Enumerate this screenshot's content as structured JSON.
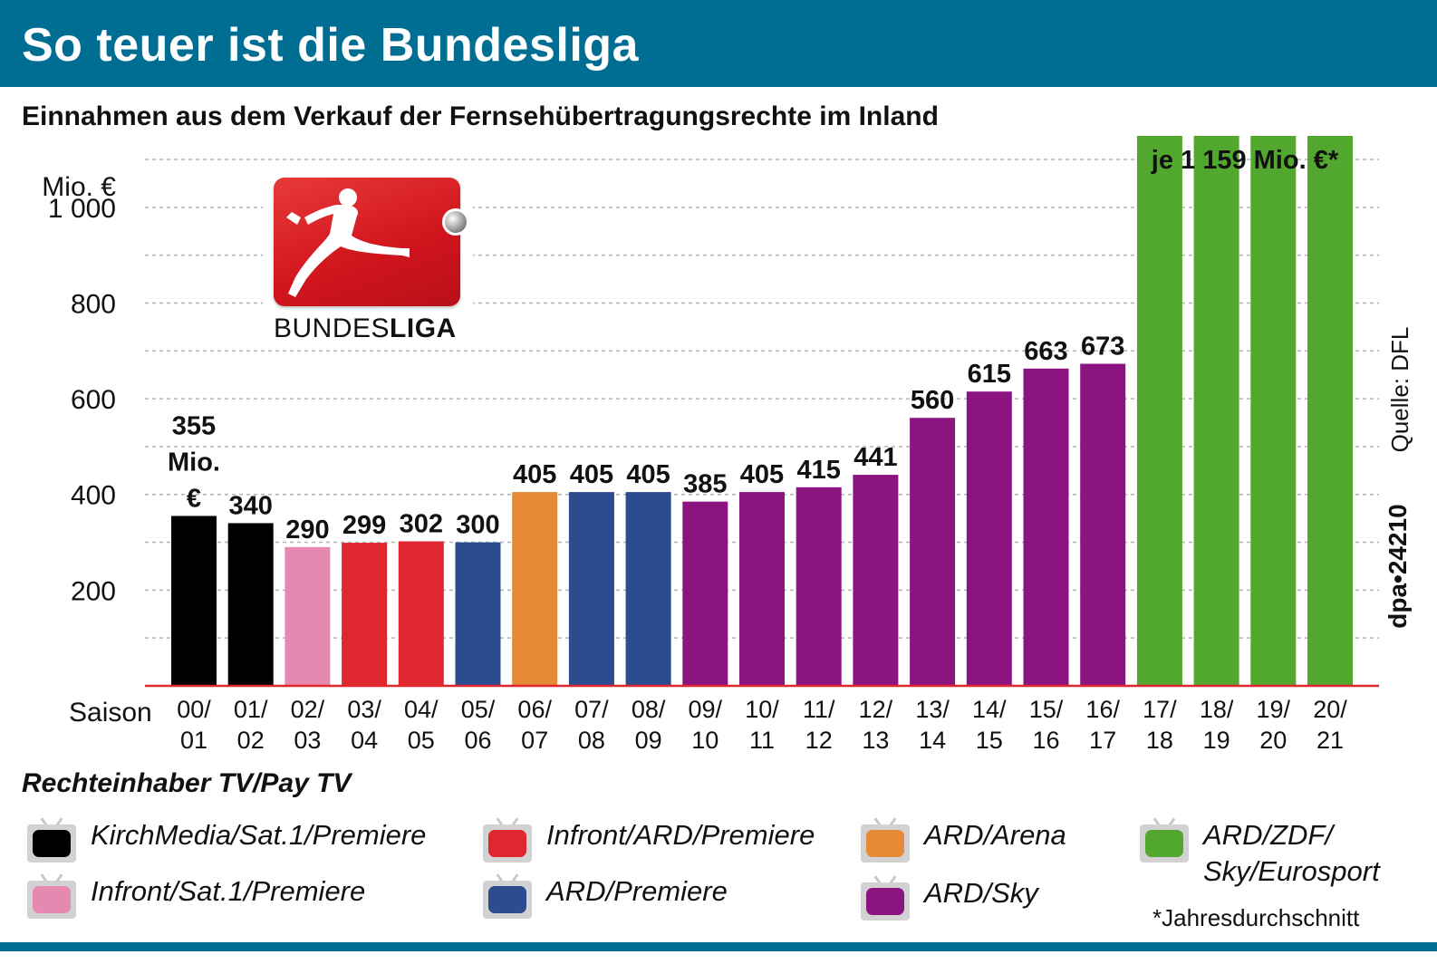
{
  "header": {
    "title": "So teuer ist die Bundesliga",
    "subtitle": "Einnahmen aus dem Verkauf der Fernsehübertragungsrechte im Inland"
  },
  "logo": {
    "text_light": "BUNDES",
    "text_bold": "LIGA"
  },
  "chart_data": {
    "type": "bar",
    "unit_label": "Mio. €",
    "x_axis_label": "Saison",
    "categories": [
      [
        "00/",
        "01"
      ],
      [
        "01/",
        "02"
      ],
      [
        "02/",
        "03"
      ],
      [
        "03/",
        "04"
      ],
      [
        "04/",
        "05"
      ],
      [
        "05/",
        "06"
      ],
      [
        "06/",
        "07"
      ],
      [
        "07/",
        "08"
      ],
      [
        "08/",
        "09"
      ],
      [
        "09/",
        "10"
      ],
      [
        "10/",
        "11"
      ],
      [
        "11/",
        "12"
      ],
      [
        "12/",
        "13"
      ],
      [
        "13/",
        "14"
      ],
      [
        "14/",
        "15"
      ],
      [
        "15/",
        "16"
      ],
      [
        "16/",
        "17"
      ],
      [
        "17/",
        "18"
      ],
      [
        "18/",
        "19"
      ],
      [
        "19/",
        "20"
      ],
      [
        "20/",
        "21"
      ]
    ],
    "values": [
      355,
      340,
      290,
      299,
      302,
      300,
      405,
      405,
      405,
      385,
      405,
      415,
      441,
      560,
      615,
      663,
      673,
      1159,
      1159,
      1159,
      1159
    ],
    "value_labels": [
      "355\nMio.\n€",
      "340",
      "290",
      "299",
      "302",
      "300",
      "405",
      "405",
      "405",
      "385",
      "405",
      "415",
      "441",
      "560",
      "615",
      "663",
      "673",
      "",
      "",
      "",
      ""
    ],
    "group_label": "je 1 159 Mio. €*",
    "rights_holder_index": [
      0,
      0,
      1,
      2,
      2,
      3,
      4,
      3,
      3,
      5,
      5,
      5,
      5,
      5,
      5,
      5,
      5,
      6,
      6,
      6,
      6
    ],
    "y_ticks": [
      200,
      400,
      600,
      800,
      1000
    ],
    "y_tick_labels": [
      "200",
      "400",
      "600",
      "800",
      "1 000"
    ],
    "ylim": [
      0,
      1100
    ],
    "grid": true
  },
  "legend": {
    "title": "Rechteinhaber TV/Pay TV",
    "items": [
      {
        "label": "KirchMedia/Sat.1/Premiere",
        "color": "#000000"
      },
      {
        "label": "Infront/Sat.1/Premiere",
        "color": "#e589b0"
      },
      {
        "label": "Infront/ARD/Premiere",
        "color": "#e0272f"
      },
      {
        "label": "ARD/Premiere",
        "color": "#2b4c8e"
      },
      {
        "label": "ARD/Arena",
        "color": "#e68a35"
      },
      {
        "label": "ARD/Sky",
        "color": "#8b1481"
      },
      {
        "label": "ARD/ZDF/\nSky/Eurosport",
        "color": "#52a82e"
      }
    ]
  },
  "source": "Quelle: DFL",
  "agency": "dpa•24210",
  "footnote": "*Jahresdurchschnitt"
}
